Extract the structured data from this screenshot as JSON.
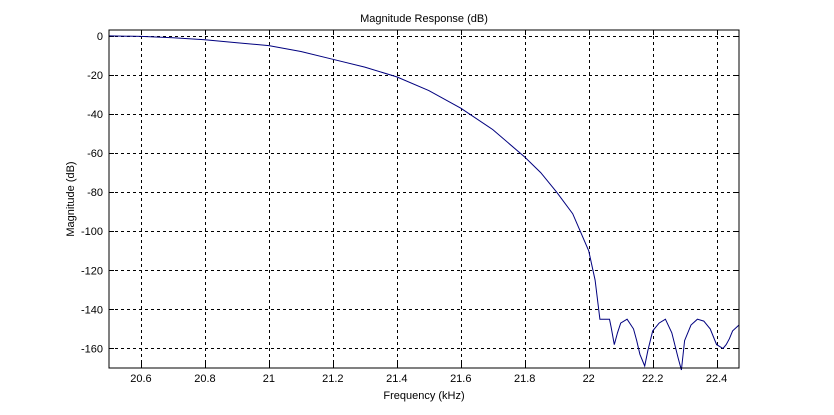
{
  "chart_data": {
    "type": "line",
    "title": "Magnitude Response (dB)",
    "xlabel": "Frequency (kHz)",
    "ylabel": "Magnitude (dB)",
    "xlim": [
      20.5,
      22.47
    ],
    "ylim": [
      -170,
      3
    ],
    "xticks": [
      20.6,
      20.8,
      21,
      21.2,
      21.4,
      21.6,
      21.8,
      22,
      22.2,
      22.4
    ],
    "xtick_labels": [
      "20.6",
      "20.8",
      "21",
      "21.2",
      "21.4",
      "21.6",
      "21.8",
      "22",
      "22.2",
      "22.4"
    ],
    "yticks": [
      0,
      -20,
      -40,
      -60,
      -80,
      -100,
      -120,
      -140,
      -160
    ],
    "ytick_labels": [
      "0",
      "-20",
      "-40",
      "-60",
      "-80",
      "-100",
      "-120",
      "-140",
      "-160"
    ],
    "grid": true,
    "line_color": "#00007f",
    "series": [
      {
        "x": [
          20.5,
          20.6,
          20.7,
          20.8,
          20.9,
          21.0,
          21.1,
          21.2,
          21.3,
          21.4,
          21.5,
          21.6,
          21.7,
          21.8,
          21.85,
          21.9,
          21.95,
          22.0,
          22.02,
          22.035,
          22.045,
          22.05,
          22.06,
          22.065,
          22.07,
          22.08,
          22.09,
          22.1,
          22.12,
          22.14,
          22.15,
          22.16,
          22.175,
          22.185,
          22.2,
          22.22,
          22.24,
          22.26,
          22.28,
          22.29,
          22.3,
          22.32,
          22.34,
          22.36,
          22.38,
          22.4,
          22.42,
          22.43,
          22.44,
          22.45,
          22.47
        ],
        "y": [
          0,
          -0.3,
          -1,
          -2,
          -3.5,
          -5,
          -8,
          -12,
          -16,
          -21,
          -28,
          -37,
          -48,
          -62,
          -70,
          -80,
          -91,
          -110,
          -125,
          -145,
          -145,
          -145,
          -145,
          -145,
          -149,
          -158,
          -152,
          -147,
          -145,
          -150,
          -156,
          -163,
          -169,
          -161,
          -151,
          -147,
          -145,
          -152,
          -165,
          -171,
          -156,
          -148,
          -145,
          -146,
          -150,
          -158,
          -160,
          -158,
          -155,
          -151,
          -148
        ]
      }
    ]
  }
}
